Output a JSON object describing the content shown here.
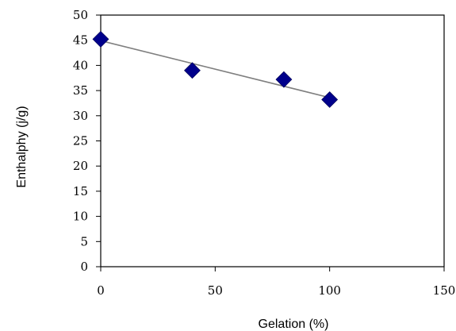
{
  "chart_data": {
    "type": "scatter",
    "title": "",
    "xlabel": "Gelation (%)",
    "ylabel": "Enthalphy (j/g)",
    "xlim": [
      0,
      150
    ],
    "ylim": [
      0,
      50
    ],
    "x_ticks": [
      0,
      50,
      100,
      150
    ],
    "y_ticks": [
      0,
      5,
      10,
      15,
      20,
      25,
      30,
      35,
      40,
      45,
      50
    ],
    "grid": false,
    "legend": "none",
    "series": [
      {
        "marker": "diamond",
        "color": "#00008b",
        "points": [
          {
            "x": 0,
            "y": 45.2
          },
          {
            "x": 40,
            "y": 39.0
          },
          {
            "x": 80,
            "y": 37.2
          },
          {
            "x": 100,
            "y": 33.2
          }
        ]
      }
    ],
    "trendline": {
      "type": "linear",
      "color": "#7f7f7f",
      "x_range": [
        0,
        100
      ],
      "y_start": 44.9,
      "y_end": 33.6
    }
  }
}
